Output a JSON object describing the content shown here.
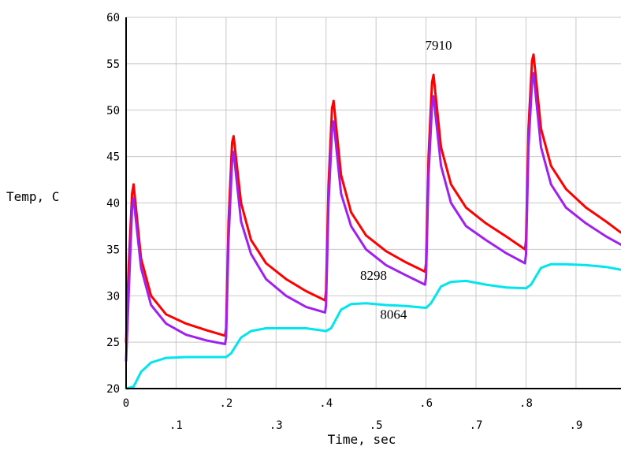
{
  "chart_data": {
    "type": "line",
    "xlabel": "Time, sec",
    "ylabel": "Temp, C",
    "xlim": [
      0,
      0.99
    ],
    "ylim": [
      20,
      60
    ],
    "grid": true,
    "y_ticks": [
      "20",
      "25",
      "30",
      "35",
      "40",
      "45",
      "50",
      "55",
      "60"
    ],
    "x_ticks_upper": [
      "0",
      ".2",
      ".4",
      ".6",
      ".8"
    ],
    "x_ticks_lower": [
      ".1",
      ".3",
      ".5",
      ".7",
      ".9"
    ],
    "annotations": [
      {
        "text": "7910",
        "x": 0.625,
        "y": 56.5
      },
      {
        "text": "8298",
        "x": 0.495,
        "y": 31.7
      },
      {
        "text": "8064",
        "x": 0.535,
        "y": 27.5
      }
    ],
    "colors": {
      "red": "#ff0000",
      "purple": "#a020f0",
      "cyan": "#00e5ee"
    },
    "series": [
      {
        "color": "red",
        "x": [
          0,
          0.005,
          0.012,
          0.015,
          0.03,
          0.05,
          0.08,
          0.12,
          0.16,
          0.198,
          0.2,
          0.205,
          0.212,
          0.215,
          0.23,
          0.25,
          0.28,
          0.32,
          0.36,
          0.398,
          0.4,
          0.405,
          0.412,
          0.415,
          0.43,
          0.45,
          0.48,
          0.52,
          0.56,
          0.598,
          0.6,
          0.605,
          0.612,
          0.615,
          0.63,
          0.65,
          0.68,
          0.72,
          0.76,
          0.798,
          0.8,
          0.805,
          0.812,
          0.815,
          0.83,
          0.85,
          0.88,
          0.92,
          0.96,
          0.99
        ],
        "y": [
          25,
          33,
          41,
          42,
          34,
          30,
          28,
          27,
          26.3,
          25.7,
          26.5,
          38,
          46.5,
          47.2,
          40,
          36,
          33.5,
          31.8,
          30.5,
          29.5,
          30.5,
          42,
          50.2,
          51,
          43,
          39,
          36.5,
          34.8,
          33.6,
          32.6,
          33.5,
          45,
          53,
          53.8,
          46,
          42,
          39.5,
          37.8,
          36.4,
          35,
          36,
          48,
          55.3,
          56,
          48,
          44,
          41.5,
          39.5,
          38,
          36.8
        ]
      },
      {
        "color": "purple",
        "x": [
          0,
          0.005,
          0.012,
          0.015,
          0.03,
          0.05,
          0.08,
          0.12,
          0.16,
          0.198,
          0.2,
          0.205,
          0.212,
          0.215,
          0.23,
          0.25,
          0.28,
          0.32,
          0.36,
          0.398,
          0.4,
          0.405,
          0.412,
          0.415,
          0.43,
          0.45,
          0.48,
          0.52,
          0.56,
          0.598,
          0.6,
          0.605,
          0.612,
          0.615,
          0.63,
          0.65,
          0.68,
          0.72,
          0.76,
          0.798,
          0.8,
          0.805,
          0.812,
          0.815,
          0.83,
          0.85,
          0.88,
          0.92,
          0.96,
          0.99
        ],
        "y": [
          23,
          30,
          39.5,
          40.5,
          33,
          29,
          27,
          25.8,
          25.2,
          24.8,
          25.5,
          36,
          44.5,
          45.5,
          38,
          34.5,
          31.8,
          30,
          28.8,
          28.2,
          29,
          40,
          47.8,
          48.8,
          41,
          37.5,
          35,
          33.3,
          32.2,
          31.2,
          32,
          43,
          50.5,
          51.5,
          44,
          40,
          37.5,
          36,
          34.6,
          33.5,
          34.5,
          46,
          53,
          54,
          46,
          42,
          39.5,
          37.8,
          36.4,
          35.5
        ]
      },
      {
        "color": "cyan",
        "x": [
          0,
          0.015,
          0.03,
          0.05,
          0.08,
          0.12,
          0.16,
          0.2,
          0.21,
          0.23,
          0.25,
          0.28,
          0.32,
          0.36,
          0.4,
          0.41,
          0.43,
          0.45,
          0.48,
          0.52,
          0.56,
          0.6,
          0.61,
          0.63,
          0.65,
          0.68,
          0.72,
          0.76,
          0.8,
          0.81,
          0.83,
          0.85,
          0.88,
          0.92,
          0.96,
          0.99
        ],
        "y": [
          20,
          20.2,
          21.8,
          22.8,
          23.3,
          23.4,
          23.4,
          23.4,
          23.8,
          25.5,
          26.2,
          26.5,
          26.5,
          26.5,
          26.2,
          26.5,
          28.5,
          29.1,
          29.2,
          29.0,
          28.9,
          28.7,
          29.2,
          31.0,
          31.5,
          31.6,
          31.2,
          30.9,
          30.8,
          31.2,
          33.0,
          33.4,
          33.4,
          33.3,
          33.1,
          32.8
        ]
      }
    ]
  }
}
